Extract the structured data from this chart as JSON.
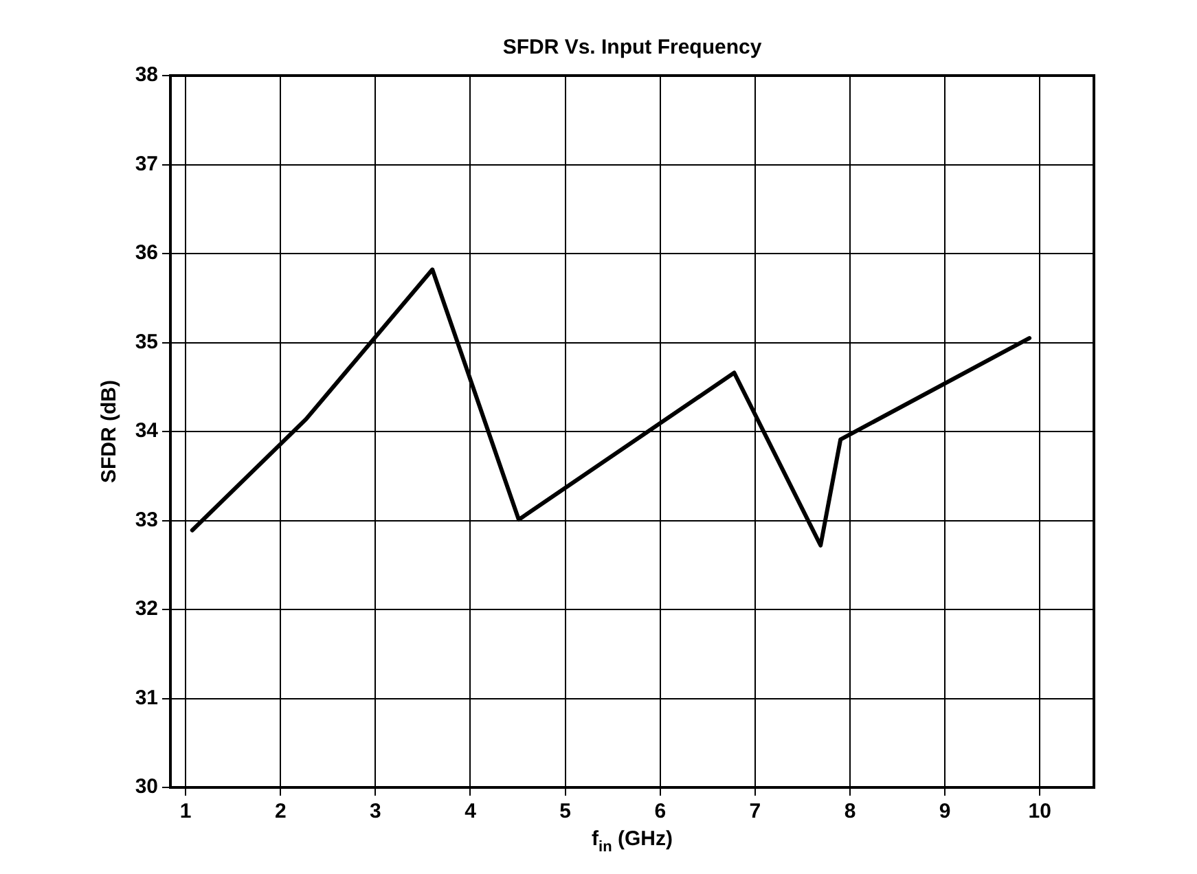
{
  "chart_data": {
    "type": "line",
    "title": "SFDR Vs. Input Frequency",
    "xlabel": "f$_{in}$ (GHz)",
    "ylabel": "SFDR (dB)",
    "x": [
      1.07,
      2.27,
      3.6,
      4.51,
      6.78,
      7.69,
      7.9,
      9.89
    ],
    "series": [
      {
        "color": "#000000",
        "values": [
          32.89,
          34.14,
          35.82,
          33.01,
          34.66,
          32.72,
          33.91,
          35.05
        ]
      }
    ],
    "xlim": [
      0.84,
      10.57
    ],
    "xticks": [
      1,
      2,
      3,
      4,
      5,
      6,
      7,
      8,
      9,
      10
    ],
    "ylim": [
      30,
      38
    ],
    "yticks": [
      30,
      31,
      32,
      33,
      34,
      35,
      36,
      37,
      38
    ],
    "grid": true,
    "legend": false,
    "marker": "none",
    "line_style": "solid"
  }
}
